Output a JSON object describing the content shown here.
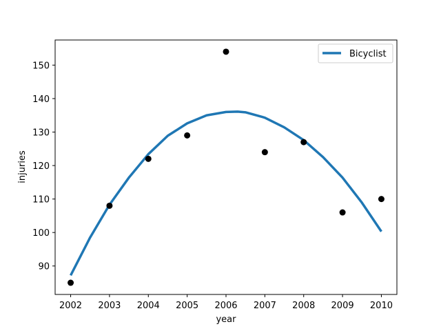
{
  "chart_data": {
    "type": "scatter",
    "xlabel": "year",
    "ylabel": "injuries",
    "xlim": [
      2001.6,
      2010.4
    ],
    "ylim": [
      81.5,
      157.5
    ],
    "xticks": [
      2002,
      2003,
      2004,
      2005,
      2006,
      2007,
      2008,
      2009,
      2010
    ],
    "yticks": [
      90,
      100,
      110,
      120,
      130,
      140,
      150
    ],
    "grid": false,
    "legend_position": "top-right",
    "points": {
      "x": [
        2002,
        2003,
        2004,
        2005,
        2006,
        2007,
        2008,
        2009,
        2010
      ],
      "y": [
        85,
        108,
        122,
        129,
        154,
        124,
        127,
        106,
        110
      ],
      "color": "#000000"
    },
    "fit": {
      "name": "Bicyclist",
      "color": "#1f77b4",
      "x": [
        2002,
        2002.5,
        2003,
        2003.5,
        2004,
        2004.5,
        2005,
        2005.5,
        2006,
        2006.3,
        2006.5,
        2007,
        2007.5,
        2008,
        2008.5,
        2009,
        2009.5,
        2010
      ],
      "y": [
        87.2,
        98.5,
        108.3,
        116.4,
        123.4,
        128.9,
        132.6,
        135.0,
        136.0,
        136.1,
        135.9,
        134.3,
        131.4,
        127.6,
        122.5,
        116.4,
        108.9,
        100.3
      ]
    }
  }
}
